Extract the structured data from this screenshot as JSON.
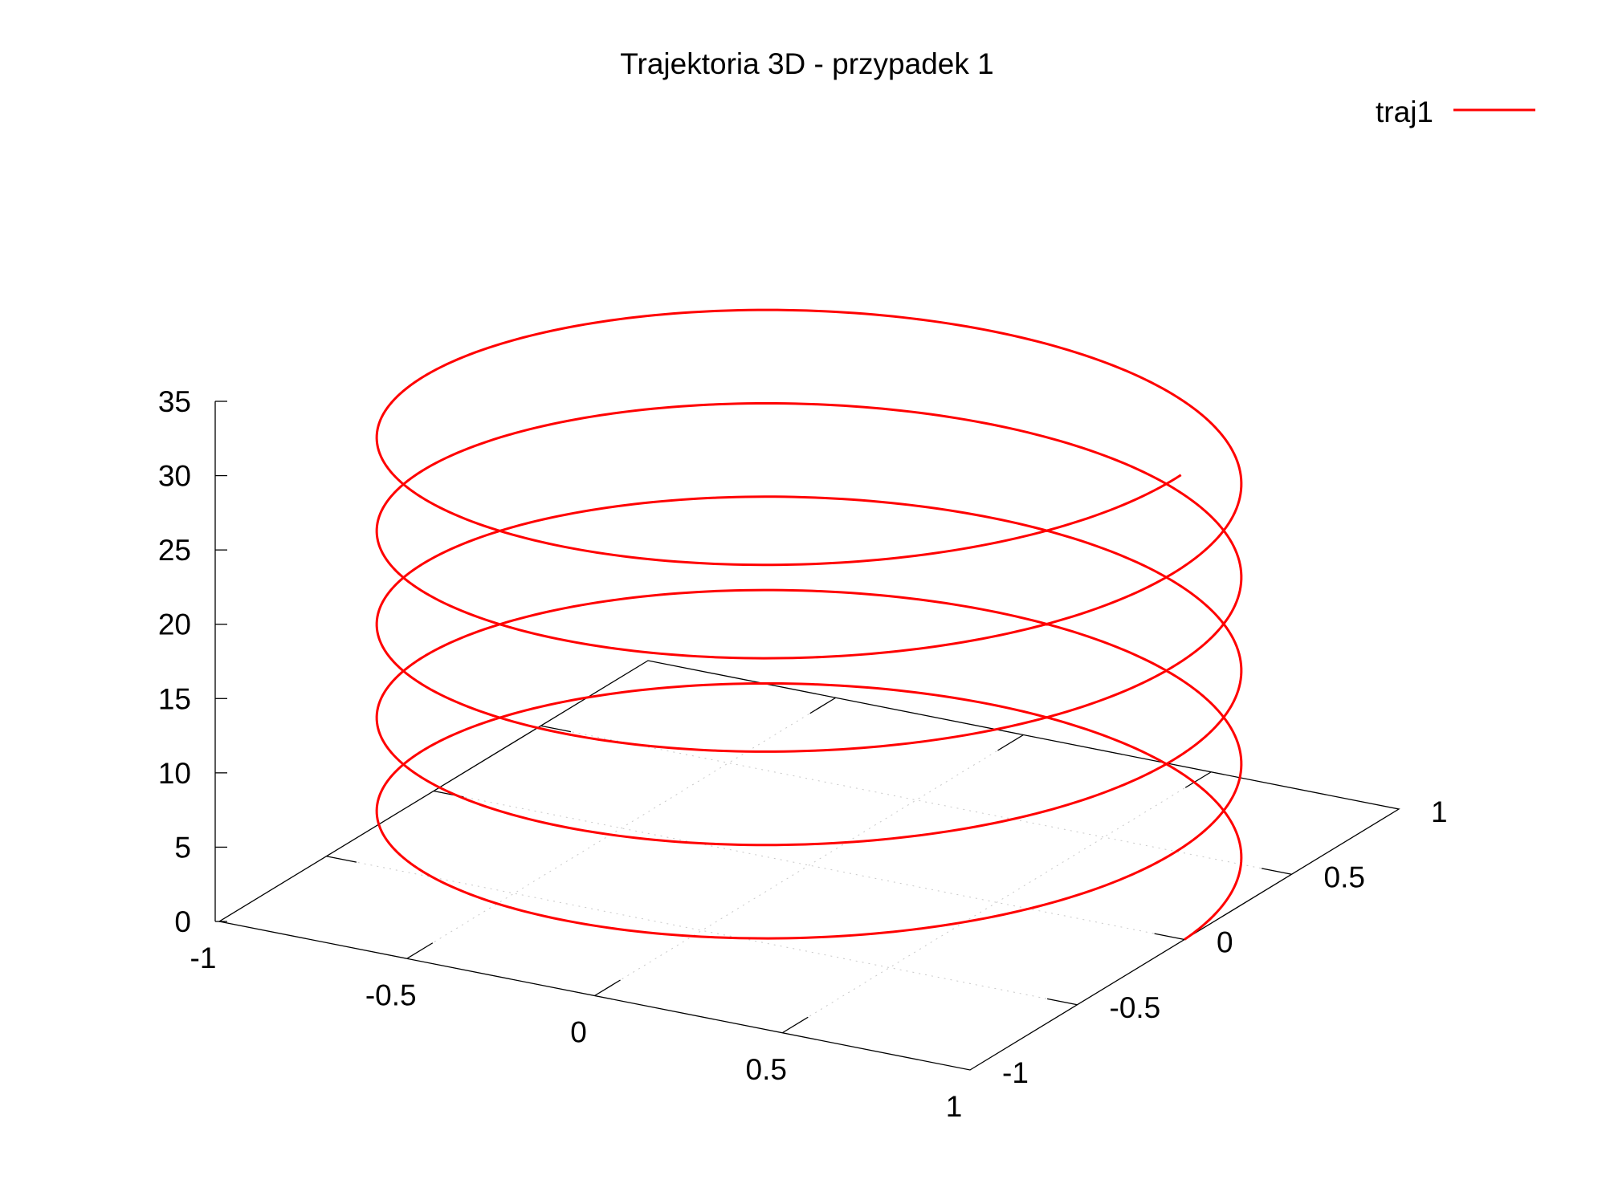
{
  "chart_data": {
    "type": "line3d",
    "title": "Trajektoria 3D - przypadek 1",
    "legend_position": "top-right",
    "xlim": [
      -1,
      1
    ],
    "ylim": [
      -1,
      1
    ],
    "zlim": [
      0,
      35
    ],
    "x_ticks": [
      "-1",
      "-0.5",
      "0",
      "0.5",
      "1"
    ],
    "y_ticks": [
      "-1",
      "-0.5",
      "0",
      "0.5",
      "1"
    ],
    "z_ticks": [
      "0",
      "5",
      "10",
      "15",
      "20",
      "25",
      "30",
      "35"
    ],
    "grid": true,
    "series": [
      {
        "name": "traj1",
        "color": "#ff0000",
        "param": "x = cos(t), y = sin(t), z = t",
        "t_range": [
          0,
          31.4
        ]
      }
    ]
  }
}
